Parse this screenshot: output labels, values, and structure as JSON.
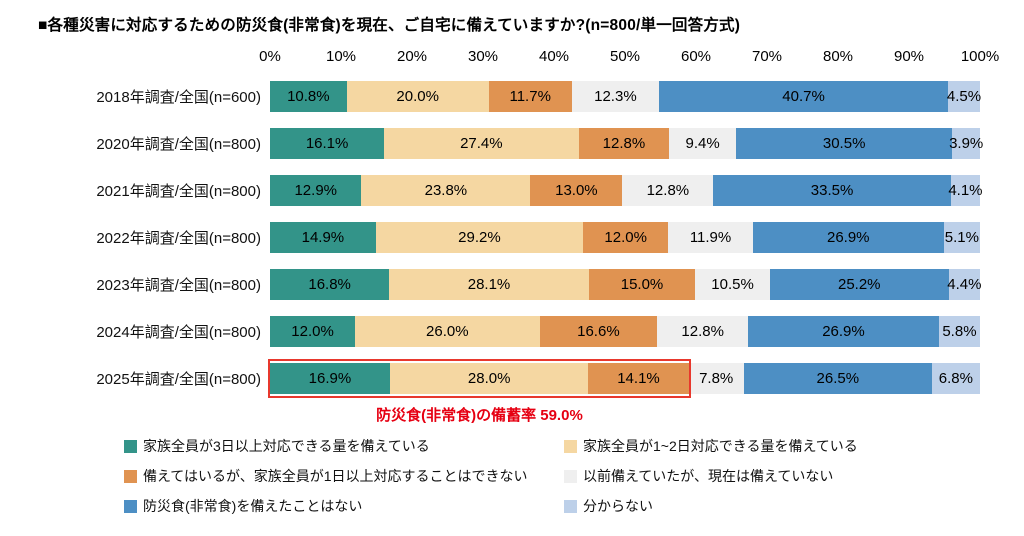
{
  "title": "■各種災害に対応するための防災食(非常食)を現在、ご自宅に備えていますか?(n=800/単一回答方式)",
  "chart_data": {
    "type": "bar",
    "stacked": true,
    "orientation": "horizontal",
    "x_ticks": [
      "0%",
      "10%",
      "20%",
      "30%",
      "40%",
      "50%",
      "60%",
      "70%",
      "80%",
      "90%",
      "100%"
    ],
    "xlim": [
      0,
      100
    ],
    "grid": false,
    "legend_position": "bottom",
    "categories": [
      "2018年調査/全国(n=600)",
      "2020年調査/全国(n=800)",
      "2021年調査/全国(n=800)",
      "2022年調査/全国(n=800)",
      "2023年調査/全国(n=800)",
      "2024年調査/全国(n=800)",
      "2025年調査/全国(n=800)"
    ],
    "series": [
      {
        "name": "家族全員が3日以上対応できる量を備えている",
        "color": "#339489",
        "values": [
          10.8,
          16.1,
          12.9,
          14.9,
          16.8,
          12.0,
          16.9
        ]
      },
      {
        "name": "家族全員が1~2日対応できる量を備えている",
        "color": "#f5d7a2",
        "values": [
          20.0,
          27.4,
          23.8,
          29.2,
          28.1,
          26.0,
          28.0
        ]
      },
      {
        "name": "備えてはいるが、家族全員が1日以上対応することはできない",
        "color": "#e09351",
        "values": [
          11.7,
          12.8,
          13.0,
          12.0,
          15.0,
          16.6,
          14.1
        ]
      },
      {
        "name": "以前備えていたが、現在は備えていない",
        "color": "#efefef",
        "values": [
          12.3,
          9.4,
          12.8,
          11.9,
          10.5,
          12.8,
          7.8
        ]
      },
      {
        "name": "防災食(非常食)を備えたことはない",
        "color": "#4d8fc4",
        "values": [
          40.7,
          30.5,
          33.5,
          26.9,
          25.2,
          26.9,
          26.5
        ]
      },
      {
        "name": "分からない",
        "color": "#bdd0e9",
        "values": [
          4.5,
          3.9,
          4.1,
          5.1,
          4.4,
          5.8,
          6.8
        ]
      }
    ],
    "annotation": {
      "text": "防災食(非常食)の備蓄率 59.0%",
      "color": "#e60012",
      "highlight_category": "2025年調査/全国(n=800)",
      "span_percent": 59.0
    }
  }
}
